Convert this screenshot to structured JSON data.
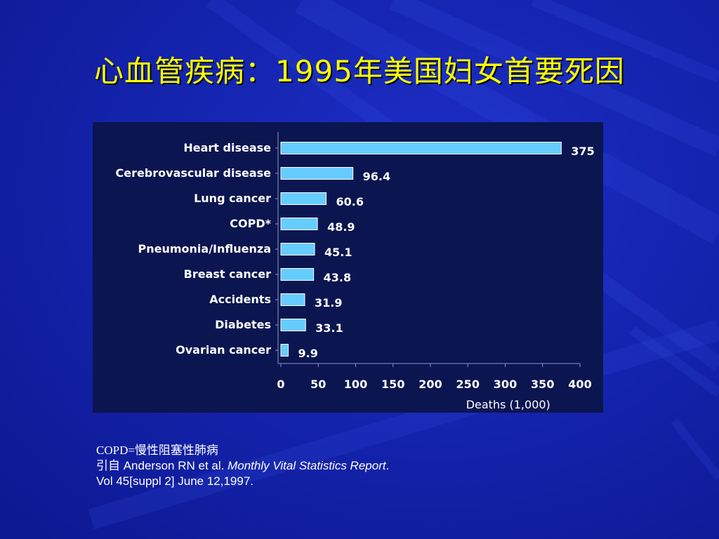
{
  "slide": {
    "title": "心血管疾病：1995年美国妇女首要死因"
  },
  "colors": {
    "background": "#1424ae",
    "title": "#ffff00",
    "panel": "#0b1550",
    "bar": "#66ccff",
    "text": "#ffffff"
  },
  "chart_data": {
    "type": "bar",
    "orientation": "horizontal",
    "categories": [
      "Heart disease",
      "Cerebrovascular disease",
      "Lung cancer",
      "COPD*",
      "Pneumonia/Influenza",
      "Breast cancer",
      "Accidents",
      "Diabetes",
      "Ovarian cancer"
    ],
    "values": [
      375,
      96.4,
      60.6,
      48.9,
      45.1,
      43.8,
      31.9,
      33.1,
      9.9
    ],
    "value_labels": [
      "375",
      "96.4",
      "60.6",
      "48.9",
      "45.1",
      "43.8",
      "31.9",
      "33.1",
      "9.9"
    ],
    "xlabel": "Deaths (1,000)",
    "xlim": [
      0,
      400
    ],
    "xticks": [
      "0",
      "50",
      "100",
      "150",
      "200",
      "250",
      "300",
      "350",
      "400"
    ],
    "grid": false
  },
  "footnotes": {
    "abbrev": "COPD=慢性阻塞性肺病",
    "source_prefix": "引自",
    "source_authors": " Anderson RN et al. ",
    "source_journal": "Monthly Vital Statistics Report",
    "source_period": ".",
    "source_volume": "Vol 45[suppl 2] June 12,1997."
  }
}
